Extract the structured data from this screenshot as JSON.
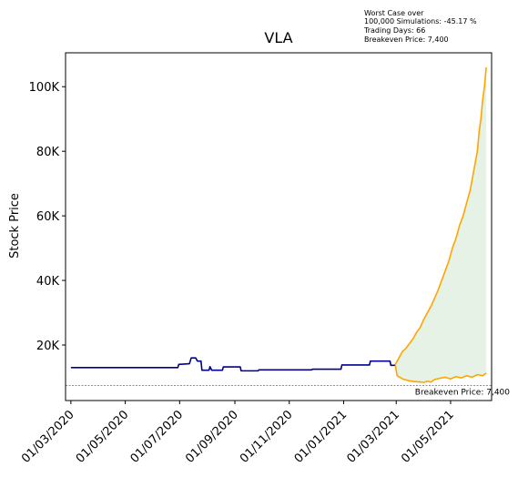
{
  "chart_data": {
    "type": "line",
    "title": "VLA",
    "xlabel": "",
    "ylabel": "Stock Price",
    "grid": false,
    "x_range_days": [
      -6,
      472
    ],
    "ylim": [
      2800,
      110500
    ],
    "x_ticks": [
      {
        "day": 0,
        "label": "01/03/2020"
      },
      {
        "day": 61,
        "label": "01/05/2020"
      },
      {
        "day": 122,
        "label": "01/07/2020"
      },
      {
        "day": 184,
        "label": "01/09/2020"
      },
      {
        "day": 245,
        "label": "01/11/2020"
      },
      {
        "day": 306,
        "label": "01/01/2021"
      },
      {
        "day": 365,
        "label": "01/03/2021"
      },
      {
        "day": 426,
        "label": "01/05/2021"
      }
    ],
    "y_ticks": [
      {
        "value": 20000,
        "label": "20K"
      },
      {
        "value": 40000,
        "label": "40K"
      },
      {
        "value": 60000,
        "label": "60K"
      },
      {
        "value": 80000,
        "label": "80K"
      },
      {
        "value": 100000,
        "label": "100K"
      }
    ],
    "series": [
      {
        "key": "history",
        "color": "#00008b",
        "points": [
          [
            0,
            13000
          ],
          [
            120,
            13000
          ],
          [
            121,
            14000
          ],
          [
            133,
            14200
          ],
          [
            135,
            16000
          ],
          [
            140,
            16000
          ],
          [
            142,
            15000
          ],
          [
            146,
            15000
          ],
          [
            147,
            12200
          ],
          [
            155,
            12200
          ],
          [
            156,
            13300
          ],
          [
            158,
            12200
          ],
          [
            170,
            12200
          ],
          [
            171,
            13200
          ],
          [
            190,
            13200
          ],
          [
            191,
            12000
          ],
          [
            210,
            12000
          ],
          [
            211,
            12300
          ],
          [
            270,
            12300
          ],
          [
            271,
            12500
          ],
          [
            303,
            12500
          ],
          [
            304,
            13800
          ],
          [
            335,
            13800
          ],
          [
            336,
            15000
          ],
          [
            358,
            15000
          ],
          [
            359,
            13700
          ],
          [
            364,
            13700
          ]
        ]
      },
      {
        "key": "best_case",
        "color": "#ffa500",
        "points": [
          [
            364,
            14000
          ],
          [
            368,
            16000
          ],
          [
            372,
            18000
          ],
          [
            376,
            19000
          ],
          [
            380,
            20500
          ],
          [
            384,
            22000
          ],
          [
            388,
            24000
          ],
          [
            392,
            25500
          ],
          [
            396,
            28000
          ],
          [
            400,
            30000
          ],
          [
            404,
            32000
          ],
          [
            408,
            34500
          ],
          [
            412,
            37000
          ],
          [
            416,
            40000
          ],
          [
            420,
            43000
          ],
          [
            424,
            46000
          ],
          [
            428,
            50000
          ],
          [
            432,
            53000
          ],
          [
            436,
            57000
          ],
          [
            440,
            60000
          ],
          [
            444,
            64000
          ],
          [
            448,
            68000
          ],
          [
            452,
            74000
          ],
          [
            456,
            80000
          ],
          [
            458,
            86000
          ],
          [
            460,
            90000
          ],
          [
            462,
            96000
          ],
          [
            464,
            100000
          ],
          [
            466,
            106000
          ]
        ]
      },
      {
        "key": "worst_case",
        "color": "#ffa500",
        "points": [
          [
            364,
            13700
          ],
          [
            366,
            10500
          ],
          [
            372,
            9500
          ],
          [
            378,
            9000
          ],
          [
            384,
            8700
          ],
          [
            390,
            8600
          ],
          [
            396,
            8400
          ],
          [
            400,
            8800
          ],
          [
            404,
            8500
          ],
          [
            408,
            9300
          ],
          [
            414,
            9700
          ],
          [
            420,
            10000
          ],
          [
            426,
            9500
          ],
          [
            432,
            10200
          ],
          [
            438,
            9800
          ],
          [
            444,
            10500
          ],
          [
            450,
            10000
          ],
          [
            456,
            10800
          ],
          [
            462,
            10500
          ],
          [
            466,
            11300
          ]
        ]
      }
    ],
    "band_fill_color": "#e5f2e5",
    "breakeven": {
      "value": 7400,
      "color": "#ff0000",
      "label": "Breakeven Price: 7,400"
    },
    "annotation_lines": [
      "Worst Case over",
      "100,000 Simulations: -45.17 %",
      "Trading Days: 66",
      "Breakeven Price: 7,400"
    ]
  }
}
